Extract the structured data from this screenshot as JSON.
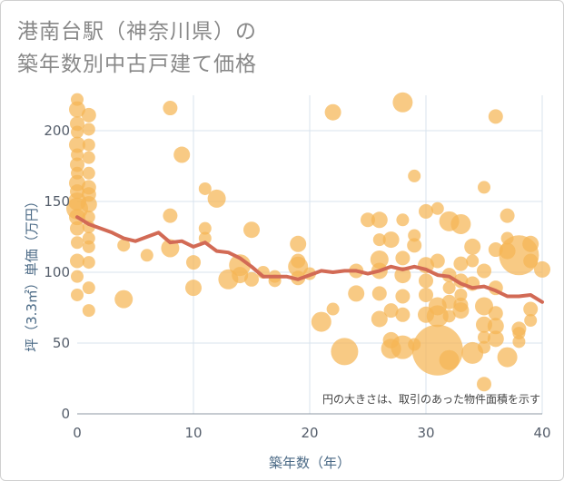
{
  "title": {
    "line1": "港南台駅（神奈川県）の",
    "line2": "築年数別中古戸建て価格"
  },
  "chart_data": {
    "type": "scatter",
    "xlabel": "築年数（年）",
    "ylabel": "坪（3.3㎡）単価（万円）",
    "xlim": [
      0,
      40
    ],
    "ylim": [
      0,
      225
    ],
    "xticks": [
      0,
      10,
      20,
      30,
      40
    ],
    "yticks": [
      0,
      50,
      100,
      150,
      200
    ],
    "grid": true,
    "annotation": "円の大きさは、取引のあった物件面積を示す",
    "bubble_color": "#f5b555",
    "line_color": "#d26a55",
    "trend": {
      "x": [
        0,
        1,
        2,
        3,
        4,
        5,
        6,
        7,
        8,
        9,
        10,
        11,
        12,
        13,
        14,
        15,
        16,
        17,
        18,
        19,
        20,
        21,
        22,
        23,
        24,
        25,
        26,
        27,
        28,
        29,
        30,
        31,
        32,
        33,
        34,
        35,
        36,
        37,
        38,
        39,
        40
      ],
      "y": [
        139,
        134,
        131,
        128,
        124,
        122,
        125,
        128,
        121,
        122,
        118,
        121,
        115,
        114,
        110,
        104,
        97,
        97,
        97,
        95,
        98,
        101,
        100,
        101,
        101,
        99,
        101,
        104,
        102,
        104,
        102,
        98,
        97,
        92,
        89,
        90,
        87,
        83,
        83,
        84,
        79
      ]
    },
    "points": [
      {
        "x": 0,
        "y": 222,
        "s": 7
      },
      {
        "x": 0,
        "y": 215,
        "s": 9
      },
      {
        "x": 0,
        "y": 205,
        "s": 8
      },
      {
        "x": 0,
        "y": 199,
        "s": 7
      },
      {
        "x": 0,
        "y": 190,
        "s": 9
      },
      {
        "x": 0,
        "y": 183,
        "s": 7
      },
      {
        "x": 0,
        "y": 176,
        "s": 8
      },
      {
        "x": 0,
        "y": 170,
        "s": 7
      },
      {
        "x": 0,
        "y": 163,
        "s": 9
      },
      {
        "x": 0,
        "y": 157,
        "s": 8
      },
      {
        "x": 0,
        "y": 150,
        "s": 10
      },
      {
        "x": 0,
        "y": 145,
        "s": 12
      },
      {
        "x": 0,
        "y": 139,
        "s": 9
      },
      {
        "x": 0,
        "y": 131,
        "s": 8
      },
      {
        "x": 0,
        "y": 121,
        "s": 7
      },
      {
        "x": 0,
        "y": 108,
        "s": 8
      },
      {
        "x": 0,
        "y": 97,
        "s": 7
      },
      {
        "x": 0,
        "y": 84,
        "s": 7
      },
      {
        "x": 1,
        "y": 211,
        "s": 8
      },
      {
        "x": 1,
        "y": 201,
        "s": 7
      },
      {
        "x": 1,
        "y": 190,
        "s": 7
      },
      {
        "x": 1,
        "y": 181,
        "s": 7
      },
      {
        "x": 1,
        "y": 170,
        "s": 7
      },
      {
        "x": 1,
        "y": 160,
        "s": 8
      },
      {
        "x": 1,
        "y": 155,
        "s": 8
      },
      {
        "x": 1,
        "y": 148,
        "s": 9
      },
      {
        "x": 1,
        "y": 139,
        "s": 7
      },
      {
        "x": 1,
        "y": 132,
        "s": 7
      },
      {
        "x": 1,
        "y": 124,
        "s": 7
      },
      {
        "x": 1,
        "y": 118,
        "s": 7
      },
      {
        "x": 1,
        "y": 107,
        "s": 7
      },
      {
        "x": 1,
        "y": 89,
        "s": 7
      },
      {
        "x": 1,
        "y": 73,
        "s": 7
      },
      {
        "x": 4,
        "y": 81,
        "s": 10
      },
      {
        "x": 4,
        "y": 119,
        "s": 7
      },
      {
        "x": 6,
        "y": 112,
        "s": 7
      },
      {
        "x": 8,
        "y": 216,
        "s": 8
      },
      {
        "x": 8,
        "y": 140,
        "s": 8
      },
      {
        "x": 8,
        "y": 117,
        "s": 10
      },
      {
        "x": 9,
        "y": 183,
        "s": 9
      },
      {
        "x": 10,
        "y": 107,
        "s": 8
      },
      {
        "x": 10,
        "y": 89,
        "s": 9
      },
      {
        "x": 11,
        "y": 159,
        "s": 7
      },
      {
        "x": 11,
        "y": 131,
        "s": 7
      },
      {
        "x": 11,
        "y": 124,
        "s": 7
      },
      {
        "x": 12,
        "y": 152,
        "s": 10
      },
      {
        "x": 13,
        "y": 95,
        "s": 11
      },
      {
        "x": 14,
        "y": 105,
        "s": 12
      },
      {
        "x": 14,
        "y": 98,
        "s": 9
      },
      {
        "x": 15,
        "y": 130,
        "s": 9
      },
      {
        "x": 15,
        "y": 95,
        "s": 8
      },
      {
        "x": 16,
        "y": 100,
        "s": 7
      },
      {
        "x": 17,
        "y": 97,
        "s": 7
      },
      {
        "x": 17,
        "y": 94,
        "s": 7
      },
      {
        "x": 19,
        "y": 120,
        "s": 9
      },
      {
        "x": 19,
        "y": 108,
        "s": 8
      },
      {
        "x": 19,
        "y": 104,
        "s": 11
      },
      {
        "x": 19,
        "y": 96,
        "s": 8
      },
      {
        "x": 20,
        "y": 99,
        "s": 7
      },
      {
        "x": 21,
        "y": 65,
        "s": 11
      },
      {
        "x": 22,
        "y": 213,
        "s": 9
      },
      {
        "x": 22,
        "y": 74,
        "s": 7
      },
      {
        "x": 23,
        "y": 44,
        "s": 15
      },
      {
        "x": 24,
        "y": 101,
        "s": 8
      },
      {
        "x": 24,
        "y": 85,
        "s": 9
      },
      {
        "x": 25,
        "y": 137,
        "s": 8
      },
      {
        "x": 26,
        "y": 137,
        "s": 9
      },
      {
        "x": 26,
        "y": 123,
        "s": 7
      },
      {
        "x": 26,
        "y": 109,
        "s": 10
      },
      {
        "x": 26,
        "y": 101,
        "s": 9
      },
      {
        "x": 26,
        "y": 85,
        "s": 8
      },
      {
        "x": 26,
        "y": 67,
        "s": 9
      },
      {
        "x": 27,
        "y": 123,
        "s": 9
      },
      {
        "x": 27,
        "y": 73,
        "s": 8
      },
      {
        "x": 27,
        "y": 52,
        "s": 9
      },
      {
        "x": 27,
        "y": 46,
        "s": 11
      },
      {
        "x": 28,
        "y": 220,
        "s": 11
      },
      {
        "x": 28,
        "y": 137,
        "s": 7
      },
      {
        "x": 28,
        "y": 110,
        "s": 8
      },
      {
        "x": 28,
        "y": 98,
        "s": 9
      },
      {
        "x": 28,
        "y": 83,
        "s": 8
      },
      {
        "x": 28,
        "y": 70,
        "s": 8
      },
      {
        "x": 28,
        "y": 47,
        "s": 13
      },
      {
        "x": 29,
        "y": 168,
        "s": 7
      },
      {
        "x": 29,
        "y": 126,
        "s": 7
      },
      {
        "x": 29,
        "y": 119,
        "s": 8
      },
      {
        "x": 29,
        "y": 49,
        "s": 7
      },
      {
        "x": 30,
        "y": 143,
        "s": 8
      },
      {
        "x": 30,
        "y": 105,
        "s": 9
      },
      {
        "x": 30,
        "y": 94,
        "s": 8
      },
      {
        "x": 30,
        "y": 84,
        "s": 8
      },
      {
        "x": 30,
        "y": 70,
        "s": 9
      },
      {
        "x": 31,
        "y": 45,
        "s": 28
      },
      {
        "x": 31,
        "y": 69,
        "s": 12
      },
      {
        "x": 31,
        "y": 76,
        "s": 10
      },
      {
        "x": 31,
        "y": 145,
        "s": 7
      },
      {
        "x": 31,
        "y": 108,
        "s": 8
      },
      {
        "x": 32,
        "y": 136,
        "s": 11
      },
      {
        "x": 32,
        "y": 98,
        "s": 8
      },
      {
        "x": 32,
        "y": 89,
        "s": 7
      },
      {
        "x": 32,
        "y": 79,
        "s": 8
      },
      {
        "x": 32,
        "y": 69,
        "s": 7
      },
      {
        "x": 32,
        "y": 38,
        "s": 11
      },
      {
        "x": 33,
        "y": 134,
        "s": 11
      },
      {
        "x": 33,
        "y": 106,
        "s": 8
      },
      {
        "x": 33,
        "y": 94,
        "s": 8
      },
      {
        "x": 33,
        "y": 84,
        "s": 7
      },
      {
        "x": 33,
        "y": 77,
        "s": 8
      },
      {
        "x": 33,
        "y": 73,
        "s": 9
      },
      {
        "x": 34,
        "y": 118,
        "s": 9
      },
      {
        "x": 34,
        "y": 108,
        "s": 7
      },
      {
        "x": 34,
        "y": 92,
        "s": 8
      },
      {
        "x": 34,
        "y": 43,
        "s": 12
      },
      {
        "x": 35,
        "y": 160,
        "s": 7
      },
      {
        "x": 35,
        "y": 101,
        "s": 8
      },
      {
        "x": 35,
        "y": 76,
        "s": 10
      },
      {
        "x": 35,
        "y": 63,
        "s": 9
      },
      {
        "x": 35,
        "y": 54,
        "s": 7
      },
      {
        "x": 35,
        "y": 47,
        "s": 7
      },
      {
        "x": 35,
        "y": 21,
        "s": 8
      },
      {
        "x": 36,
        "y": 210,
        "s": 8
      },
      {
        "x": 36,
        "y": 116,
        "s": 8
      },
      {
        "x": 36,
        "y": 89,
        "s": 8
      },
      {
        "x": 36,
        "y": 71,
        "s": 8
      },
      {
        "x": 36,
        "y": 62,
        "s": 9
      },
      {
        "x": 36,
        "y": 53,
        "s": 9
      },
      {
        "x": 37,
        "y": 140,
        "s": 8
      },
      {
        "x": 37,
        "y": 124,
        "s": 7
      },
      {
        "x": 37,
        "y": 115,
        "s": 9
      },
      {
        "x": 37,
        "y": 40,
        "s": 11
      },
      {
        "x": 38,
        "y": 112,
        "s": 22
      },
      {
        "x": 38,
        "y": 60,
        "s": 8
      },
      {
        "x": 38,
        "y": 57,
        "s": 7
      },
      {
        "x": 38,
        "y": 51,
        "s": 7
      },
      {
        "x": 39,
        "y": 120,
        "s": 9
      },
      {
        "x": 39,
        "y": 108,
        "s": 8
      },
      {
        "x": 39,
        "y": 74,
        "s": 8
      },
      {
        "x": 39,
        "y": 66,
        "s": 7
      },
      {
        "x": 40,
        "y": 102,
        "s": 9
      }
    ]
  }
}
